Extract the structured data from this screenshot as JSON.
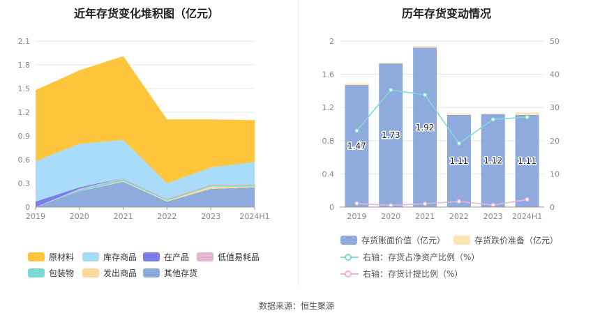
{
  "page": {
    "source": "数据来源：恒生聚源"
  },
  "colors": {
    "raw": "#ffc53d",
    "stock": "#a8dcf8",
    "wip": "#7b7de8",
    "lowvalue": "#e8b4d6",
    "pack": "#7dd8d8",
    "shipped": "#ffd99a",
    "other": "#8faadc",
    "bar_book": "#8faadc",
    "bar_reserve": "#ffe4b5",
    "line_ratio": "#80d8d8",
    "line_provision": "#e8b4d6"
  },
  "chart_data": [
    {
      "type": "area",
      "title": "近年存货变化堆积图（亿元）",
      "categories": [
        "2019",
        "2020",
        "2021",
        "2022",
        "2023",
        "2024H1"
      ],
      "ylim": [
        0,
        2.1
      ],
      "yticks": [
        "0",
        "0.3",
        "0.6",
        "0.9",
        "1.2",
        "1.5",
        "1.8",
        "2.1"
      ],
      "stack_order_bottom_to_top": [
        "其他存货",
        "发出商品",
        "包装物",
        "低值易耗品",
        "在产品",
        "库存商品",
        "原材料"
      ],
      "series": [
        {
          "name": "其他存货",
          "key": "other",
          "values": [
            0.0,
            0.2,
            0.32,
            0.07,
            0.23,
            0.25
          ]
        },
        {
          "name": "发出商品",
          "key": "shipped",
          "values": [
            0.0,
            0.0,
            0.01,
            0.01,
            0.03,
            0.01
          ]
        },
        {
          "name": "包装物",
          "key": "pack",
          "values": [
            0.0,
            0.02,
            0.03,
            0.02,
            0.02,
            0.02
          ]
        },
        {
          "name": "低值易耗品",
          "key": "lowvalue",
          "values": [
            0.0,
            0.01,
            0.01,
            0.01,
            0.01,
            0.01
          ]
        },
        {
          "name": "在产品",
          "key": "wip",
          "values": [
            0.07,
            0.02,
            0.0,
            0.0,
            0.0,
            0.0
          ]
        },
        {
          "name": "库存商品",
          "key": "stock",
          "values": [
            0.51,
            0.55,
            0.48,
            0.19,
            0.21,
            0.28
          ]
        },
        {
          "name": "原材料",
          "key": "raw",
          "values": [
            0.9,
            0.93,
            1.06,
            0.81,
            0.61,
            0.53
          ]
        }
      ],
      "legend": [
        {
          "name": "原材料",
          "key": "raw"
        },
        {
          "name": "库存商品",
          "key": "stock"
        },
        {
          "name": "在产品",
          "key": "wip"
        },
        {
          "name": "低值易耗品",
          "key": "lowvalue"
        },
        {
          "name": "包装物",
          "key": "pack"
        },
        {
          "name": "发出商品",
          "key": "shipped"
        },
        {
          "name": "其他存货",
          "key": "other"
        }
      ],
      "legend_position": "bottom"
    },
    {
      "type": "bar",
      "title": "历年存货变动情况",
      "categories": [
        "2019",
        "2020",
        "2021",
        "2022",
        "2023",
        "2024H1"
      ],
      "ylim": [
        0,
        2
      ],
      "yticks": [
        "0",
        "0.4",
        "0.8",
        "1.2",
        "1.6",
        "2"
      ],
      "y2lim": [
        0,
        50
      ],
      "y2ticks": [
        "0",
        "10",
        "20",
        "30",
        "40",
        "50"
      ],
      "bars": [
        {
          "name": "存货账面价值（亿元）",
          "key": "bar_book",
          "values": [
            1.47,
            1.73,
            1.92,
            1.11,
            1.12,
            1.11
          ],
          "labels": [
            "1.47",
            "1.73",
            "1.92",
            "1.11",
            "1.12",
            "1.11"
          ]
        },
        {
          "name": "存货跌价准备（亿元）",
          "key": "bar_reserve",
          "values": [
            0.02,
            0.01,
            0.02,
            0.02,
            0.01,
            0.03
          ]
        }
      ],
      "lines": [
        {
          "name": "右轴：存货占净资产比例（%）",
          "key": "line_ratio",
          "values": [
            23,
            35.3,
            33.8,
            19.2,
            26.4,
            27.1
          ]
        },
        {
          "name": "右轴：存货计提比例（%）",
          "key": "line_provision",
          "values": [
            1.1,
            0.5,
            1.0,
            1.7,
            0.6,
            2.3
          ]
        }
      ],
      "legend_position": "bottom"
    }
  ]
}
